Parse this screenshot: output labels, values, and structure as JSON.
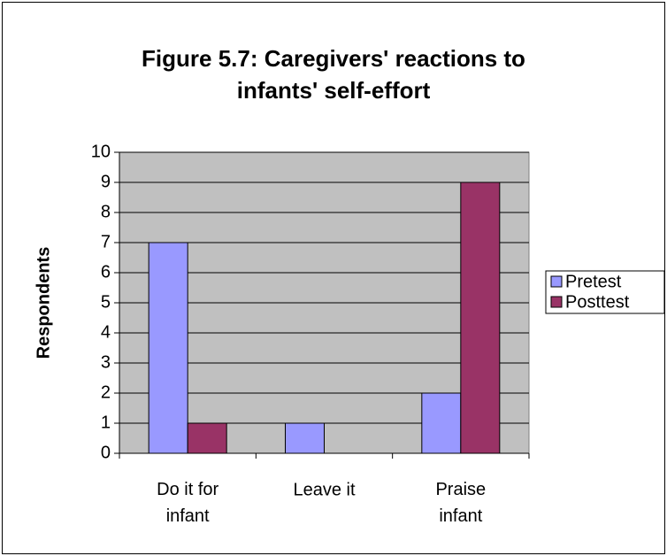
{
  "chart_data": {
    "type": "bar",
    "title": [
      "Figure 5.7: Caregivers' reactions to",
      "infants' self-effort"
    ],
    "y_label": "Respondents",
    "categories": [
      "Do it for infant",
      "Leave it",
      "Praise infant"
    ],
    "series": [
      {
        "name": "Pretest",
        "color": "#9999ff",
        "values": [
          7,
          1,
          2
        ]
      },
      {
        "name": "Posttest",
        "color": "#993366",
        "values": [
          1,
          0,
          9
        ]
      }
    ],
    "ylim": [
      0,
      10
    ],
    "yticks": [
      0,
      1,
      2,
      3,
      4,
      5,
      6,
      7,
      8,
      9,
      10
    ],
    "grid": true,
    "legend": "right"
  }
}
